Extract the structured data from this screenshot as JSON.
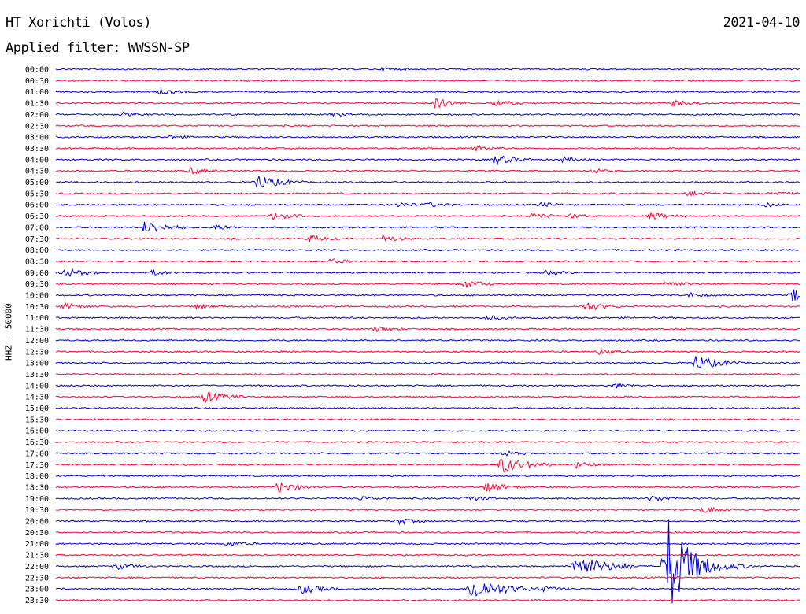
{
  "header": {
    "station": "HT Xorichti (Volos)",
    "date": "2021-04-10",
    "filter": "Applied filter: WWSSN-SP"
  },
  "chart_data": {
    "type": "line",
    "title": "HT Xorichti (Volos)",
    "ylabel": "HHZ - 50000",
    "rows": [
      "00:00",
      "00:30",
      "01:00",
      "01:30",
      "02:00",
      "02:30",
      "03:00",
      "03:30",
      "04:00",
      "04:30",
      "05:00",
      "05:30",
      "06:00",
      "06:30",
      "07:00",
      "07:30",
      "08:00",
      "08:30",
      "09:00",
      "09:30",
      "10:00",
      "10:30",
      "11:00",
      "11:30",
      "12:00",
      "12:30",
      "13:00",
      "13:30",
      "14:00",
      "14:30",
      "15:00",
      "15:30",
      "16:00",
      "16:30",
      "17:00",
      "17:30",
      "18:00",
      "18:30",
      "19:00",
      "19:30",
      "20:00",
      "20:30",
      "21:00",
      "21:30",
      "22:00",
      "22:30",
      "23:00",
      "23:30"
    ],
    "trace_colors": [
      "#0000cc",
      "#ff0033"
    ],
    "events": [
      {
        "row": "00:00",
        "t": 0.44,
        "amp": 2
      },
      {
        "row": "01:00",
        "t": 0.14,
        "amp": 3
      },
      {
        "row": "01:30",
        "t": 0.51,
        "amp": 6
      },
      {
        "row": "01:30",
        "t": 0.59,
        "amp": 4
      },
      {
        "row": "01:30",
        "t": 0.83,
        "amp": 4
      },
      {
        "row": "02:00",
        "t": 0.09,
        "amp": 2
      },
      {
        "row": "02:00",
        "t": 0.37,
        "amp": 2
      },
      {
        "row": "03:00",
        "t": 0.15,
        "amp": 2
      },
      {
        "row": "03:30",
        "t": 0.56,
        "amp": 4
      },
      {
        "row": "04:00",
        "t": 0.59,
        "amp": 6
      },
      {
        "row": "04:00",
        "t": 0.68,
        "amp": 3
      },
      {
        "row": "04:30",
        "t": 0.18,
        "amp": 4
      },
      {
        "row": "04:30",
        "t": 0.72,
        "amp": 3
      },
      {
        "row": "05:00",
        "t": 0.27,
        "amp": 9
      },
      {
        "row": "05:30",
        "t": 0.85,
        "amp": 3
      },
      {
        "row": "05:30",
        "t": 0.96,
        "amp": 3
      },
      {
        "row": "06:00",
        "t": 0.46,
        "amp": 3
      },
      {
        "row": "06:00",
        "t": 0.5,
        "amp": 3
      },
      {
        "row": "06:00",
        "t": 0.65,
        "amp": 3
      },
      {
        "row": "06:00",
        "t": 0.95,
        "amp": 3
      },
      {
        "row": "06:30",
        "t": 0.29,
        "amp": 5
      },
      {
        "row": "06:30",
        "t": 0.64,
        "amp": 4
      },
      {
        "row": "06:30",
        "t": 0.69,
        "amp": 3
      },
      {
        "row": "06:30",
        "t": 0.8,
        "amp": 5
      },
      {
        "row": "07:00",
        "t": 0.12,
        "amp": 8
      },
      {
        "row": "07:00",
        "t": 0.21,
        "amp": 4
      },
      {
        "row": "07:30",
        "t": 0.34,
        "amp": 4
      },
      {
        "row": "07:30",
        "t": 0.44,
        "amp": 4
      },
      {
        "row": "08:30",
        "t": 0.37,
        "amp": 3
      },
      {
        "row": "09:00",
        "t": 0.01,
        "amp": 6
      },
      {
        "row": "09:00",
        "t": 0.13,
        "amp": 3
      },
      {
        "row": "09:00",
        "t": 0.66,
        "amp": 3
      },
      {
        "row": "09:30",
        "t": 0.55,
        "amp": 5
      },
      {
        "row": "09:30",
        "t": 0.82,
        "amp": 4
      },
      {
        "row": "10:00",
        "t": 0.85,
        "amp": 3
      },
      {
        "row": "10:00",
        "t": 0.99,
        "amp": 8
      },
      {
        "row": "10:30",
        "t": 0.01,
        "amp": 4
      },
      {
        "row": "10:30",
        "t": 0.19,
        "amp": 3
      },
      {
        "row": "10:30",
        "t": 0.71,
        "amp": 6
      },
      {
        "row": "11:00",
        "t": 0.58,
        "amp": 3
      },
      {
        "row": "11:30",
        "t": 0.43,
        "amp": 3
      },
      {
        "row": "12:30",
        "t": 0.73,
        "amp": 3
      },
      {
        "row": "13:00",
        "t": 0.86,
        "amp": 9
      },
      {
        "row": "14:00",
        "t": 0.75,
        "amp": 3
      },
      {
        "row": "14:30",
        "t": 0.2,
        "amp": 7
      },
      {
        "row": "17:00",
        "t": 0.6,
        "amp": 3
      },
      {
        "row": "17:30",
        "t": 0.6,
        "amp": 10
      },
      {
        "row": "17:30",
        "t": 0.7,
        "amp": 4
      },
      {
        "row": "18:30",
        "t": 0.3,
        "amp": 7
      },
      {
        "row": "18:30",
        "t": 0.58,
        "amp": 6
      },
      {
        "row": "19:00",
        "t": 0.41,
        "amp": 3
      },
      {
        "row": "19:00",
        "t": 0.55,
        "amp": 4
      },
      {
        "row": "19:00",
        "t": 0.8,
        "amp": 4
      },
      {
        "row": "19:30",
        "t": 0.87,
        "amp": 4
      },
      {
        "row": "20:00",
        "t": 0.46,
        "amp": 4
      },
      {
        "row": "21:00",
        "t": 0.23,
        "amp": 3
      },
      {
        "row": "22:00",
        "t": 0.08,
        "amp": 4
      },
      {
        "row": "22:00",
        "t": 0.7,
        "amp": 14
      },
      {
        "row": "22:00",
        "t": 0.82,
        "amp": 70
      },
      {
        "row": "23:00",
        "t": 0.33,
        "amp": 6
      },
      {
        "row": "23:00",
        "t": 0.56,
        "amp": 14
      },
      {
        "row": "23:00",
        "t": 0.65,
        "amp": 4
      }
    ]
  }
}
